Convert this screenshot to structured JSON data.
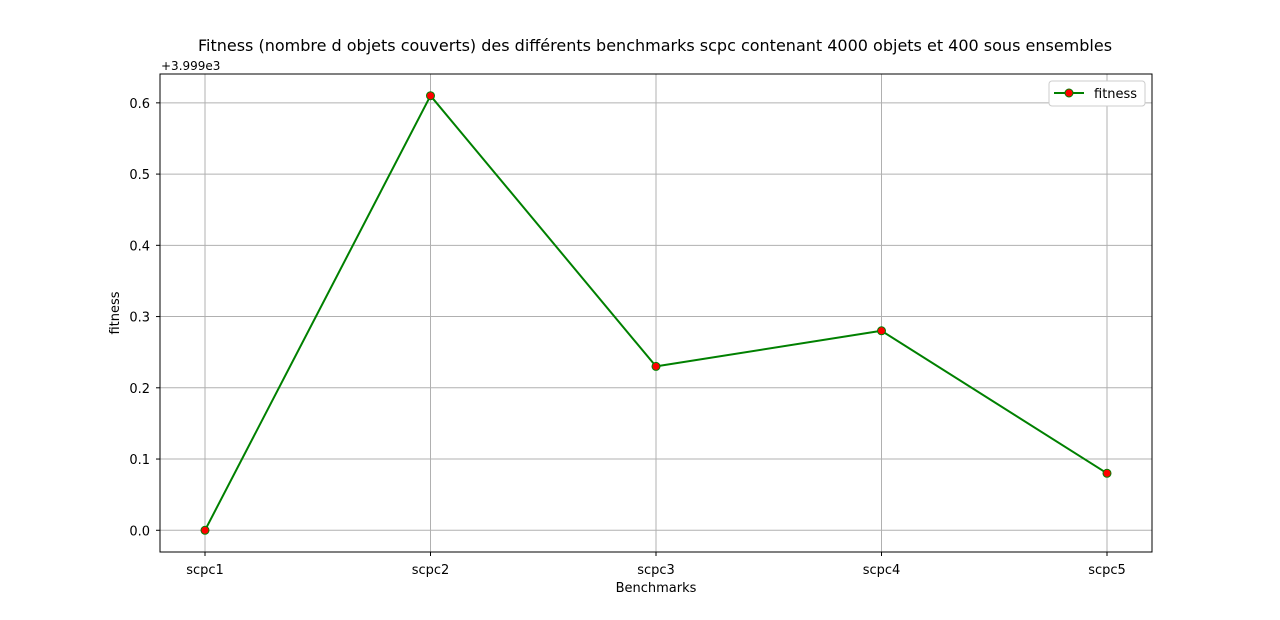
{
  "chart_data": {
    "type": "line",
    "title": "Fitness (nombre d objets couverts) des différents benchmarks scpc contenant 4000 objets et 400 sous ensembles",
    "xlabel": "Benchmarks",
    "ylabel": "fitness",
    "offset_text": "+3.999e3",
    "offset_value": 3999,
    "categories": [
      "scpc1",
      "scpc2",
      "scpc3",
      "scpc4",
      "scpc5"
    ],
    "series": [
      {
        "name": "fitness",
        "values": [
          3999.0,
          3999.61,
          3999.23,
          3999.28,
          3999.08
        ],
        "line_color": "#008000",
        "marker_color": "#ff0000",
        "marker_edge_color": "#008000"
      }
    ],
    "y_ticks": [
      0.0,
      0.1,
      0.2,
      0.3,
      0.4,
      0.5,
      0.6
    ],
    "y_tick_labels": [
      "0.0",
      "0.1",
      "0.2",
      "0.3",
      "0.4",
      "0.5",
      "0.6"
    ],
    "ylim": [
      -0.0305,
      0.6405
    ],
    "grid": true,
    "legend_position": "top-right"
  }
}
